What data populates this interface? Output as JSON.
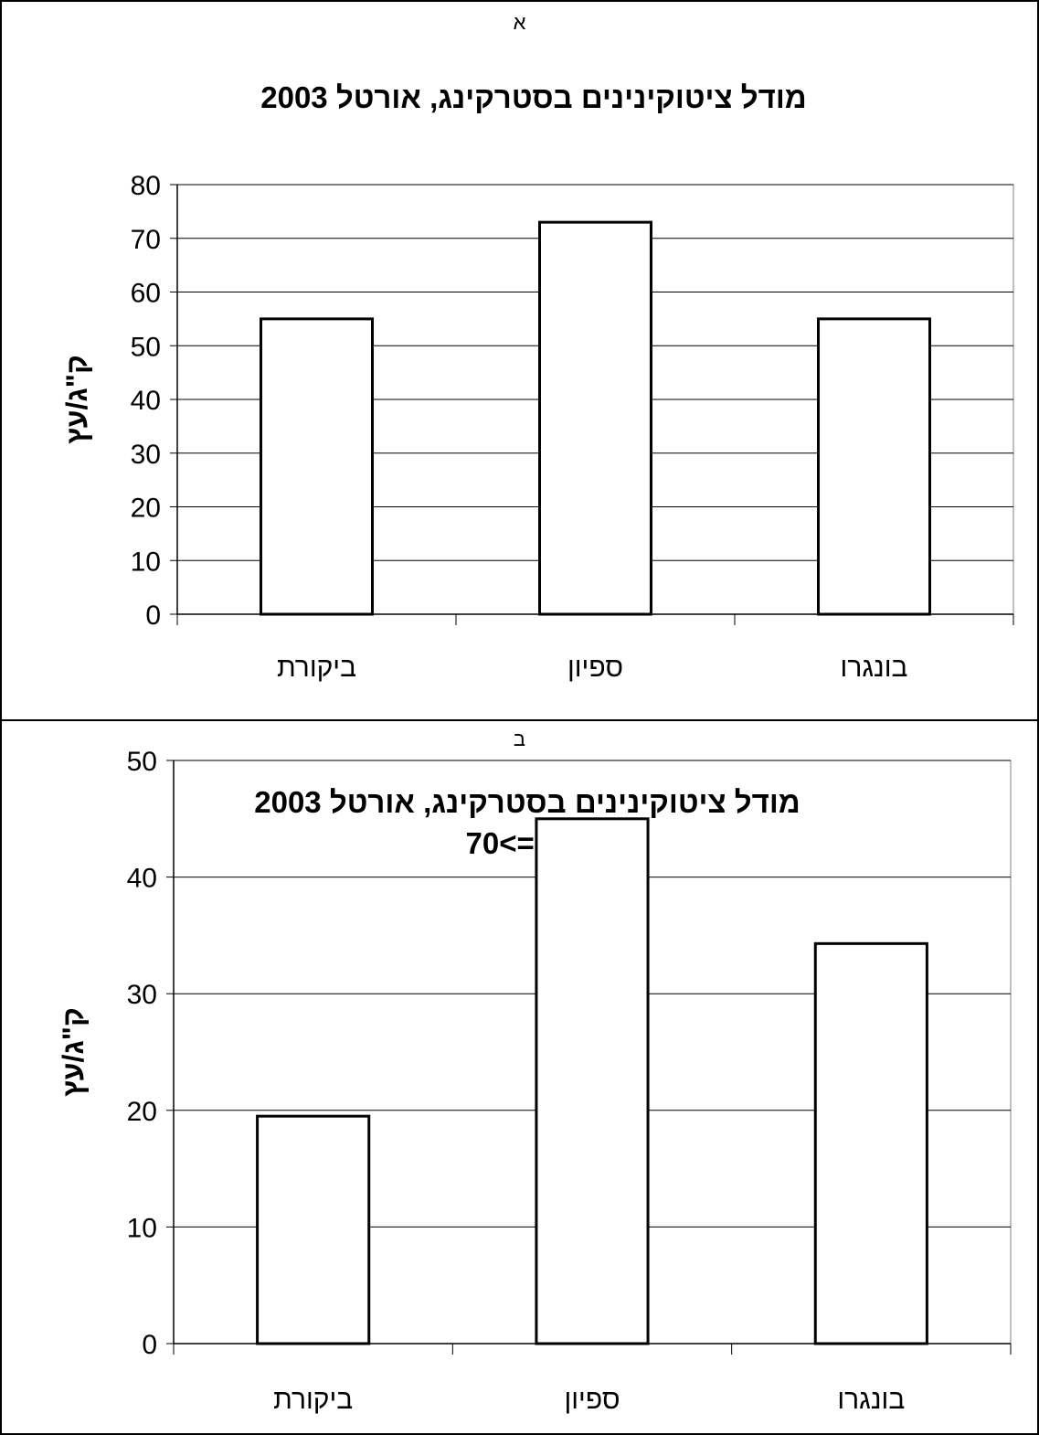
{
  "panels": [
    {
      "label": "א"
    },
    {
      "label": "ב"
    }
  ],
  "chart_data": [
    {
      "type": "bar",
      "title": "מודל ציטוקינינים בסטרקינג, אורטל 2003",
      "subtitle": "",
      "ylabel": "ק\"ג/עץ",
      "xlabel": "",
      "categories": [
        "ביקורת",
        "ספיון",
        "בונגרו"
      ],
      "series": [
        {
          "values": [
            55,
            73,
            55
          ]
        }
      ],
      "ylim": [
        0,
        80
      ],
      "yticks": [
        "0",
        "10",
        "20",
        "30",
        "40",
        "50",
        "60",
        "70",
        "80"
      ],
      "grid": true,
      "bar_fill": "#ffffff",
      "bar_stroke": "#000000"
    },
    {
      "type": "bar",
      "title": "מודל ציטוקינינים בסטרקינג, אורטל 2003",
      "subtitle": "פרי =>70",
      "ylabel": "ק\"ג/עץ",
      "xlabel": "",
      "categories": [
        "ביקורת",
        "ספיון",
        "בונגרו"
      ],
      "series": [
        {
          "values": [
            19.5,
            45,
            34.3
          ]
        }
      ],
      "ylim": [
        0,
        50
      ],
      "yticks": [
        "0",
        "10",
        "20",
        "30",
        "40",
        "50"
      ],
      "grid": true,
      "bar_fill": "#ffffff",
      "bar_stroke": "#000000"
    }
  ]
}
